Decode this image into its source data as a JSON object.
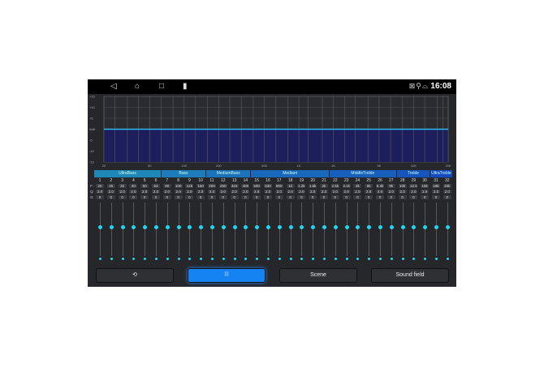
{
  "status_bar": {
    "time": "16:08",
    "nav_icons": [
      "back-icon",
      "home-icon",
      "recents-icon",
      "battery-icon"
    ],
    "status_icons": [
      "no-signal-icon",
      "location-icon",
      "car-icon"
    ]
  },
  "graph": {
    "y_labels": [
      "+15",
      "+10",
      "+5",
      "0dB",
      "-5",
      "-10",
      "-15"
    ],
    "x_labels": [
      "20",
      "50",
      "100",
      "200",
      "500",
      "1K",
      "2K",
      "5K",
      "10K",
      "20K"
    ],
    "curve_gain_db": 0,
    "colors": {
      "line": "#2bb6ee",
      "fill": "#1d1f5c"
    }
  },
  "groups": [
    {
      "label": "UltraBass",
      "from": 1,
      "to": 6
    },
    {
      "label": "Bass",
      "from": 7,
      "to": 10
    },
    {
      "label": "MediumBass",
      "from": 11,
      "to": 14
    },
    {
      "label": "Mediant",
      "from": 15,
      "to": 21
    },
    {
      "label": "MiddleTreble",
      "from": 22,
      "to": 27
    },
    {
      "label": "Treble",
      "from": 28,
      "to": 30
    },
    {
      "label": "UltraTreble",
      "from": 31,
      "to": 32
    }
  ],
  "row_labels": {
    "f": "F:",
    "q": "Q:",
    "g": "G:"
  },
  "bands": {
    "numbers": [
      "1",
      "2",
      "3",
      "4",
      "5",
      "6",
      "7",
      "8",
      "9",
      "10",
      "11",
      "12",
      "13",
      "14",
      "15",
      "16",
      "17",
      "18",
      "19",
      "20",
      "21",
      "22",
      "23",
      "24",
      "25",
      "26",
      "27",
      "28",
      "29",
      "30",
      "31",
      "32"
    ],
    "freq": [
      "20",
      "25",
      "32",
      "40",
      "50",
      "63",
      "80",
      "100",
      "125",
      "160",
      "200",
      "250",
      "315",
      "400",
      "500",
      "630",
      "800",
      "1k",
      "1.2k",
      "1.6k",
      "2k",
      "2.5k",
      "3.1k",
      "4k",
      "5k",
      "6.3k",
      "8k",
      "10k",
      "12.5",
      "16k",
      "18k",
      "20k"
    ],
    "q": "2.0",
    "gain": "0"
  },
  "buttons": {
    "reset_icon": "reset-icon",
    "eq_icon": "equalizer-icon",
    "scene": "Scene",
    "sound_field": "Sound field"
  }
}
